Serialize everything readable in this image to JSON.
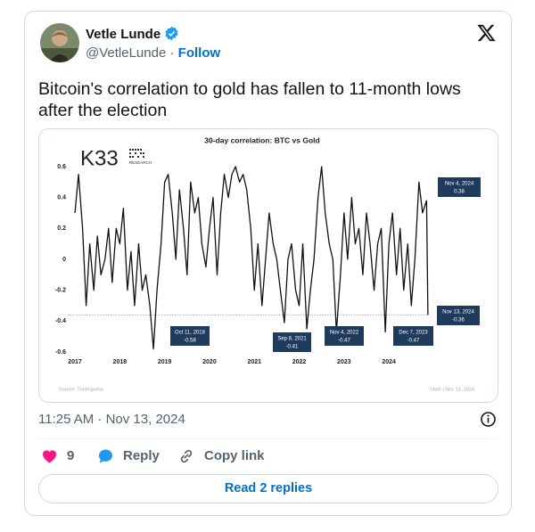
{
  "tweet": {
    "name": "Vetle Lunde",
    "handle": "@VetleLunde",
    "separator": "·",
    "follow": "Follow",
    "text": "Bitcoin's correlation to gold has fallen to 11-month lows after the election",
    "timestamp": "11:25 AM · Nov 13, 2024",
    "likes": "9",
    "reply": "Reply",
    "copy_link": "Copy link",
    "read_replies": "Read 2 replies"
  },
  "chart_data": {
    "type": "line",
    "title": "30-day correlation: BTC vs Gold",
    "logo": "K33",
    "logo_sub": "RESEARCH",
    "source": "Source: Tradingview",
    "date_note": "Date | Nov 13, 2024",
    "x": [
      2017.0,
      2017.08,
      2017.17,
      2017.25,
      2017.33,
      2017.42,
      2017.5,
      2017.58,
      2017.67,
      2017.75,
      2017.83,
      2017.92,
      2018.0,
      2018.08,
      2018.17,
      2018.25,
      2018.33,
      2018.42,
      2018.5,
      2018.58,
      2018.67,
      2018.75,
      2018.83,
      2018.92,
      2019.0,
      2019.08,
      2019.17,
      2019.25,
      2019.33,
      2019.42,
      2019.5,
      2019.58,
      2019.67,
      2019.75,
      2019.83,
      2019.92,
      2020.0,
      2020.08,
      2020.17,
      2020.25,
      2020.33,
      2020.42,
      2020.5,
      2020.58,
      2020.67,
      2020.75,
      2020.83,
      2020.92,
      2021.0,
      2021.08,
      2021.17,
      2021.25,
      2021.33,
      2021.42,
      2021.5,
      2021.58,
      2021.67,
      2021.75,
      2021.83,
      2021.92,
      2022.0,
      2022.08,
      2022.17,
      2022.25,
      2022.33,
      2022.42,
      2022.5,
      2022.58,
      2022.67,
      2022.75,
      2022.83,
      2022.92,
      2023.0,
      2023.08,
      2023.17,
      2023.25,
      2023.33,
      2023.42,
      2023.5,
      2023.58,
      2023.67,
      2023.75,
      2023.83,
      2023.92,
      2024.0,
      2024.08,
      2024.17,
      2024.25,
      2024.33,
      2024.42,
      2024.5,
      2024.58,
      2024.67,
      2024.75,
      2024.84,
      2024.87
    ],
    "series": [
      {
        "name": "BTC vs Gold",
        "color": "#111111",
        "values": [
          0.3,
          0.55,
          0.2,
          -0.3,
          0.1,
          -0.2,
          0.15,
          -0.1,
          0.0,
          0.2,
          -0.15,
          0.2,
          0.1,
          0.33,
          -0.2,
          0.05,
          -0.3,
          0.1,
          -0.2,
          -0.1,
          -0.3,
          -0.58,
          -0.2,
          0.1,
          0.5,
          0.55,
          0.3,
          0.0,
          0.45,
          0.2,
          -0.1,
          0.5,
          0.3,
          0.4,
          0.1,
          -0.05,
          0.2,
          0.4,
          -0.1,
          0.3,
          0.55,
          0.4,
          0.55,
          0.6,
          0.5,
          0.55,
          0.45,
          0.2,
          -0.2,
          0.1,
          -0.3,
          0.0,
          0.3,
          0.1,
          0.0,
          -0.2,
          -0.41,
          0.0,
          0.1,
          -0.2,
          -0.3,
          0.1,
          -0.45,
          -0.2,
          0.0,
          0.4,
          0.6,
          0.3,
          0.1,
          0.0,
          -0.47,
          -0.1,
          0.3,
          0.0,
          0.4,
          0.1,
          0.2,
          -0.1,
          0.3,
          0.1,
          -0.2,
          0.1,
          0.2,
          -0.47,
          0.1,
          0.3,
          -0.1,
          0.2,
          -0.2,
          0.1,
          -0.3,
          0.0,
          0.5,
          0.3,
          0.38,
          -0.36
        ]
      }
    ],
    "annotations": [
      {
        "label": "Oct 11, 2018",
        "value": -0.58
      },
      {
        "label": "Sep 8, 2021",
        "value": -0.41
      },
      {
        "label": "Nov 4, 2022",
        "value": -0.47
      },
      {
        "label": "Dec 7, 2023",
        "value": -0.47
      },
      {
        "label": "Nov 4, 2024",
        "value": 0.38
      },
      {
        "label": "Nov 13, 2024",
        "value": -0.36
      }
    ],
    "reference_line": -0.36,
    "xlim": [
      2016.84,
      2025.2
    ],
    "xticks": [
      2017,
      2018,
      2019,
      2020,
      2021,
      2022,
      2023,
      2024
    ],
    "ylim": [
      -0.623,
      0.646
    ],
    "yticks": [
      0.6,
      0.4,
      0.2,
      0,
      -0.2,
      -0.4,
      -0.6
    ]
  }
}
